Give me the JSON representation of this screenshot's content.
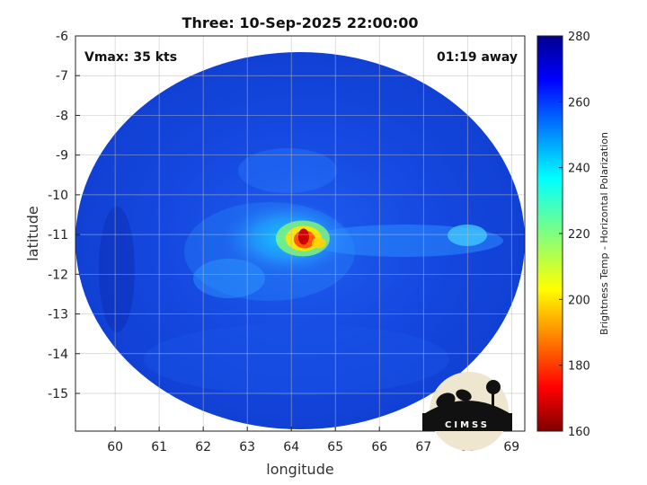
{
  "title": "Three: 10-Sep-2025 22:00:00",
  "xlabel": "longitude",
  "ylabel": "latitude",
  "annotations": {
    "vmax": "Vmax: 35 kts",
    "time_away": "01:19 away"
  },
  "colorbar": {
    "label": "Brightness Temp - Horizontal Polarization",
    "min": 160,
    "max": 280,
    "ticks": [
      "280",
      "260",
      "240",
      "220",
      "200",
      "180",
      "160"
    ],
    "colormap": "jet"
  },
  "map": {
    "xlim": [
      59.1,
      69.3
    ],
    "ylim": [
      -15.95,
      -6
    ],
    "xticks": [
      "60",
      "61",
      "62",
      "63",
      "64",
      "65",
      "66",
      "67",
      "68",
      "69"
    ],
    "yticks": [
      "-6",
      "-7",
      "-8",
      "-9",
      "-10",
      "-11",
      "-12",
      "-13",
      "-14",
      "-15"
    ],
    "swath_center_lon": 64.15,
    "swath_center_lat": -10.95,
    "storm_center_lon": 64.3,
    "storm_center_lat": -11.1,
    "min_brightness_temp": 175
  },
  "logo": {
    "text": "CIMSS",
    "name": "cimss-logo"
  }
}
